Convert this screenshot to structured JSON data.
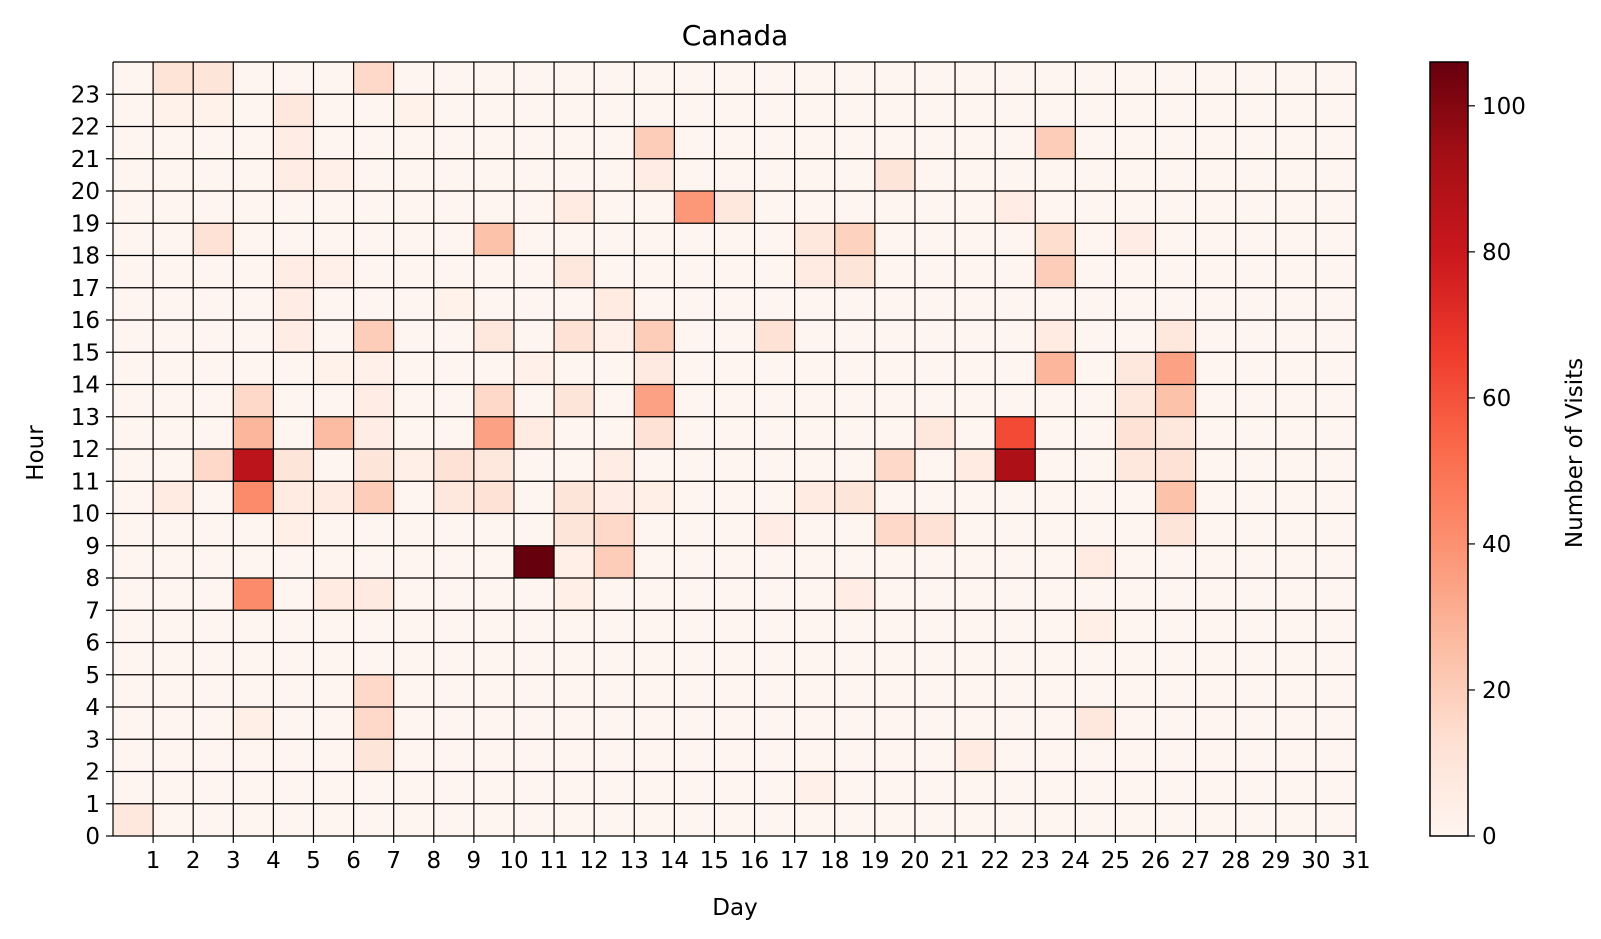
{
  "chart_data": {
    "type": "heatmap",
    "title": "Canada",
    "xlabel": "Day",
    "ylabel": "Hour",
    "x_ticks": [
      "1",
      "2",
      "3",
      "4",
      "5",
      "6",
      "7",
      "8",
      "9",
      "10",
      "11",
      "12",
      "13",
      "14",
      "15",
      "16",
      "17",
      "18",
      "19",
      "20",
      "21",
      "22",
      "23",
      "24",
      "25",
      "26",
      "27",
      "28",
      "29",
      "30",
      "31"
    ],
    "y_ticks": [
      "0",
      "1",
      "2",
      "3",
      "4",
      "5",
      "6",
      "7",
      "8",
      "9",
      "10",
      "11",
      "12",
      "13",
      "14",
      "15",
      "16",
      "17",
      "18",
      "19",
      "20",
      "21",
      "22",
      "23"
    ],
    "colorbar": {
      "label": "Number of Visits",
      "ticks": [
        "0",
        "20",
        "40",
        "60",
        "80",
        "100"
      ],
      "range": [
        0,
        106
      ],
      "colormap": "Reds",
      "stops": [
        "#fff5f0",
        "#fee0d2",
        "#fcbba1",
        "#fc9272",
        "#fb6a4a",
        "#ef3b2c",
        "#cb181d",
        "#a50f15",
        "#67000d"
      ]
    },
    "days": [
      1,
      2,
      3,
      4,
      5,
      6,
      7,
      8,
      9,
      10,
      11,
      12,
      13,
      14,
      15,
      16,
      17,
      18,
      19,
      20,
      21,
      22,
      23,
      24,
      25,
      26,
      27,
      28,
      29,
      30,
      31
    ],
    "hours": [
      0,
      1,
      2,
      3,
      4,
      5,
      6,
      7,
      8,
      9,
      10,
      11,
      12,
      13,
      14,
      15,
      16,
      17,
      18,
      19,
      20,
      21,
      22,
      23
    ],
    "values": [
      [
        8,
        0,
        0,
        0,
        0,
        0,
        0,
        0,
        0,
        0,
        0,
        0,
        0,
        0,
        0,
        0,
        0,
        0,
        0,
        0,
        0,
        0,
        0,
        0
      ],
      [
        0,
        0,
        0,
        0,
        0,
        0,
        0,
        0,
        0,
        0,
        6,
        0,
        0,
        0,
        0,
        0,
        0,
        0,
        0,
        0,
        0,
        0,
        2,
        11
      ],
      [
        0,
        0,
        0,
        0,
        0,
        0,
        0,
        0,
        0,
        0,
        0,
        16,
        0,
        0,
        0,
        0,
        0,
        0,
        12,
        0,
        0,
        0,
        2,
        10
      ],
      [
        0,
        0,
        0,
        4,
        0,
        0,
        0,
        42,
        0,
        0,
        42,
        85,
        28,
        16,
        0,
        0,
        0,
        0,
        0,
        0,
        0,
        0,
        0,
        0
      ],
      [
        0,
        0,
        0,
        0,
        0,
        0,
        0,
        0,
        0,
        4,
        6,
        10,
        0,
        0,
        0,
        5,
        5,
        5,
        0,
        0,
        5,
        5,
        8,
        0
      ],
      [
        0,
        0,
        0,
        0,
        0,
        0,
        0,
        6,
        0,
        0,
        6,
        0,
        26,
        0,
        2,
        0,
        0,
        3,
        0,
        0,
        3,
        0,
        0,
        0
      ],
      [
        0,
        0,
        10,
        16,
        16,
        0,
        0,
        7,
        0,
        0,
        20,
        10,
        5,
        5,
        3,
        20,
        0,
        0,
        0,
        0,
        0,
        0,
        0,
        16
      ],
      [
        0,
        0,
        0,
        0,
        0,
        0,
        0,
        0,
        0,
        0,
        0,
        4,
        0,
        0,
        0,
        0,
        0,
        0,
        0,
        0,
        0,
        0,
        2,
        0
      ],
      [
        0,
        0,
        0,
        0,
        0,
        0,
        0,
        0,
        0,
        0,
        8,
        12,
        0,
        0,
        0,
        0,
        2,
        0,
        0,
        0,
        0,
        0,
        0,
        0
      ],
      [
        0,
        0,
        0,
        0,
        0,
        0,
        0,
        0,
        0,
        0,
        12,
        8,
        35,
        16,
        0,
        8,
        0,
        0,
        24,
        0,
        0,
        0,
        0,
        0
      ],
      [
        0,
        0,
        0,
        0,
        0,
        0,
        0,
        0,
        106,
        0,
        0,
        0,
        6,
        0,
        3,
        0,
        0,
        0,
        0,
        0,
        0,
        0,
        0,
        0
      ],
      [
        0,
        0,
        0,
        0,
        0,
        0,
        0,
        4,
        4,
        10,
        10,
        0,
        0,
        10,
        0,
        12,
        0,
        8,
        0,
        6,
        0,
        0,
        0,
        0
      ],
      [
        0,
        0,
        0,
        0,
        0,
        0,
        0,
        0,
        20,
        16,
        5,
        5,
        0,
        0,
        0,
        3,
        6,
        0,
        0,
        0,
        0,
        0,
        0,
        0
      ],
      [
        0,
        0,
        0,
        0,
        0,
        0,
        0,
        0,
        0,
        0,
        4,
        0,
        12,
        35,
        7,
        20,
        0,
        0,
        0,
        0,
        5,
        20,
        0,
        0
      ],
      [
        0,
        0,
        0,
        0,
        0,
        0,
        0,
        0,
        0,
        0,
        0,
        0,
        0,
        0,
        0,
        0,
        0,
        0,
        0,
        38,
        0,
        0,
        0,
        0
      ],
      [
        0,
        0,
        0,
        0,
        0,
        0,
        0,
        0,
        0,
        0,
        0,
        0,
        0,
        0,
        0,
        0,
        0,
        0,
        0,
        8,
        0,
        0,
        0,
        0
      ],
      [
        0,
        0,
        0,
        0,
        0,
        0,
        0,
        0,
        0,
        5,
        0,
        0,
        0,
        0,
        0,
        12,
        0,
        0,
        0,
        0,
        0,
        0,
        0,
        0
      ],
      [
        0,
        3,
        0,
        0,
        0,
        0,
        0,
        0,
        0,
        0,
        6,
        0,
        0,
        0,
        0,
        0,
        0,
        6,
        8,
        0,
        0,
        0,
        0,
        0
      ],
      [
        0,
        0,
        0,
        0,
        0,
        0,
        0,
        5,
        0,
        0,
        10,
        0,
        0,
        0,
        0,
        0,
        0,
        10,
        18,
        0,
        0,
        0,
        0,
        0
      ],
      [
        0,
        0,
        0,
        0,
        0,
        0,
        0,
        0,
        0,
        16,
        0,
        16,
        0,
        0,
        0,
        0,
        0,
        0,
        0,
        0,
        10,
        0,
        0,
        0
      ],
      [
        0,
        0,
        0,
        0,
        0,
        0,
        0,
        0,
        0,
        12,
        0,
        0,
        8,
        0,
        0,
        0,
        0,
        0,
        0,
        0,
        0,
        0,
        0,
        0
      ],
      [
        0,
        0,
        6,
        0,
        0,
        0,
        0,
        0,
        0,
        0,
        0,
        6,
        0,
        0,
        0,
        0,
        0,
        0,
        0,
        0,
        0,
        0,
        0,
        0
      ],
      [
        0,
        0,
        0,
        0,
        0,
        0,
        0,
        0,
        0,
        0,
        0,
        90,
        62,
        0,
        0,
        0,
        0,
        0,
        0,
        5,
        0,
        0,
        0,
        0
      ],
      [
        0,
        0,
        0,
        0,
        0,
        0,
        0,
        0,
        0,
        0,
        0,
        0,
        0,
        0,
        28,
        6,
        0,
        20,
        14,
        0,
        0,
        20,
        0,
        0
      ],
      [
        0,
        0,
        0,
        8,
        0,
        0,
        4,
        0,
        6,
        0,
        0,
        0,
        0,
        0,
        0,
        0,
        0,
        0,
        0,
        0,
        0,
        0,
        0,
        0
      ],
      [
        0,
        0,
        0,
        0,
        0,
        0,
        0,
        0,
        0,
        0,
        0,
        8,
        12,
        8,
        8,
        0,
        0,
        0,
        5,
        0,
        0,
        0,
        0,
        0
      ],
      [
        0,
        0,
        0,
        0,
        0,
        0,
        0,
        0,
        0,
        10,
        24,
        12,
        8,
        24,
        35,
        8,
        0,
        0,
        0,
        0,
        0,
        0,
        0,
        0
      ],
      [
        0,
        0,
        0,
        0,
        0,
        0,
        0,
        0,
        0,
        0,
        0,
        0,
        0,
        0,
        0,
        0,
        0,
        0,
        0,
        0,
        0,
        0,
        0,
        0
      ],
      [
        0,
        0,
        0,
        0,
        0,
        0,
        0,
        0,
        0,
        0,
        0,
        0,
        0,
        0,
        0,
        0,
        0,
        0,
        0,
        0,
        0,
        0,
        0,
        0
      ],
      [
        0,
        0,
        0,
        0,
        0,
        0,
        0,
        0,
        0,
        0,
        0,
        0,
        0,
        0,
        0,
        0,
        0,
        0,
        0,
        0,
        0,
        0,
        0,
        0
      ],
      [
        0,
        0,
        0,
        0,
        0,
        0,
        0,
        0,
        0,
        0,
        0,
        0,
        0,
        0,
        0,
        0,
        0,
        0,
        0,
        0,
        0,
        0,
        0,
        0
      ]
    ]
  }
}
